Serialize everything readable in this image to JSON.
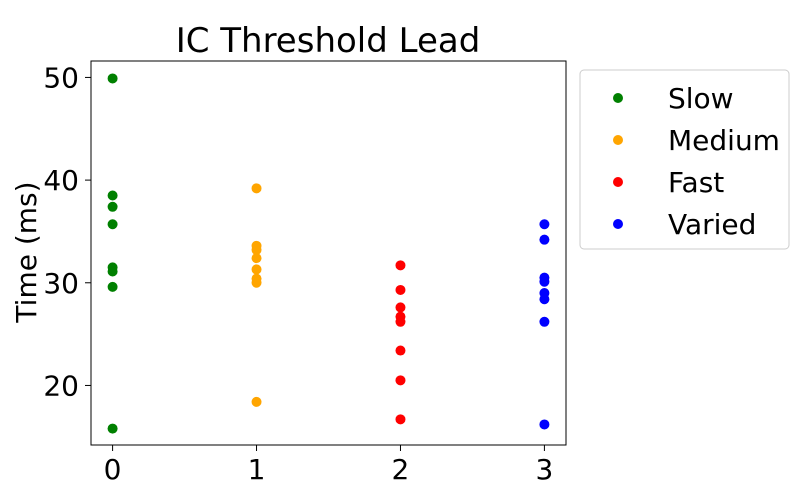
{
  "chart_data": {
    "type": "scatter",
    "title": "IC Threshold Lead",
    "xlabel": "",
    "ylabel": "Time (ms)",
    "xlim": [
      -0.15,
      3.15
    ],
    "ylim": [
      14.2,
      51.6
    ],
    "xticks": [
      0,
      1,
      2,
      3
    ],
    "yticks": [
      20,
      30,
      40,
      50
    ],
    "legend_position": "outside-right",
    "series": [
      {
        "name": "Slow",
        "color": "#008000",
        "x": 0,
        "y": [
          49.9,
          38.5,
          37.4,
          35.7,
          31.5,
          31.1,
          29.6,
          15.8
        ]
      },
      {
        "name": "Medium",
        "color": "#ffa500",
        "x": 1,
        "y": [
          39.2,
          33.6,
          33.2,
          32.4,
          31.3,
          30.4,
          30.0,
          18.4
        ]
      },
      {
        "name": "Fast",
        "color": "#ff0000",
        "x": 2,
        "y": [
          31.7,
          29.3,
          27.6,
          26.7,
          26.2,
          23.4,
          20.5,
          16.7
        ]
      },
      {
        "name": "Varied",
        "color": "#0000ff",
        "x": 3,
        "y": [
          35.7,
          34.2,
          30.5,
          30.1,
          29.0,
          28.4,
          26.2,
          16.2
        ]
      }
    ]
  }
}
